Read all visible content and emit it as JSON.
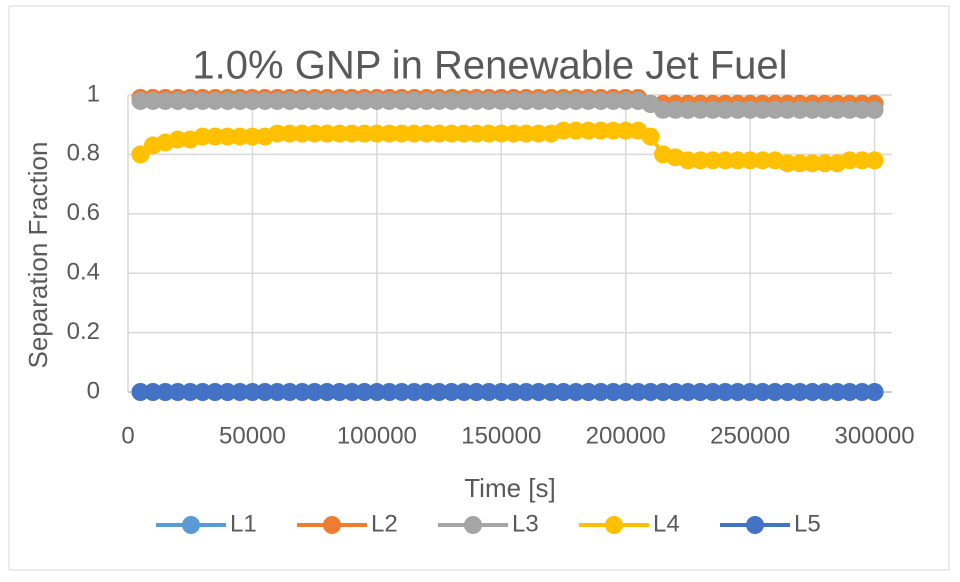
{
  "chart_data": {
    "type": "line",
    "title": "1.0% GNP in Renewable Jet Fuel",
    "x_label": "Time [s]",
    "y_label": "Separation Fraction",
    "x": [
      5000,
      10000,
      15000,
      20000,
      25000,
      30000,
      35000,
      40000,
      45000,
      50000,
      55000,
      60000,
      65000,
      70000,
      75000,
      80000,
      85000,
      90000,
      95000,
      100000,
      105000,
      110000,
      115000,
      120000,
      125000,
      130000,
      135000,
      140000,
      145000,
      150000,
      155000,
      160000,
      165000,
      170000,
      175000,
      180000,
      185000,
      190000,
      195000,
      200000,
      205000,
      210000,
      215000,
      220000,
      225000,
      230000,
      235000,
      240000,
      245000,
      250000,
      255000,
      260000,
      265000,
      270000,
      275000,
      280000,
      285000,
      290000,
      295000,
      300000
    ],
    "series": [
      {
        "name": "L1",
        "color": "#5b9bd5",
        "values": [
          0.99,
          0.99,
          0.99,
          0.99,
          0.99,
          0.99,
          0.99,
          0.99,
          0.99,
          0.99,
          0.99,
          0.99,
          0.99,
          0.99,
          0.99,
          0.99,
          0.99,
          0.99,
          0.99,
          0.99,
          0.99,
          0.99,
          0.99,
          0.99,
          0.99,
          0.99,
          0.99,
          0.99,
          0.99,
          0.99,
          0.99,
          0.99,
          0.99,
          0.99,
          0.99,
          0.99,
          0.99,
          0.99,
          0.99,
          0.99,
          0.99,
          0.97,
          0.97,
          0.97,
          0.97,
          0.97,
          0.97,
          0.97,
          0.97,
          0.97,
          0.97,
          0.97,
          0.97,
          0.97,
          0.97,
          0.97,
          0.97,
          0.97,
          0.97,
          0.97
        ]
      },
      {
        "name": "L2",
        "color": "#ed7d31",
        "values": [
          0.99,
          0.99,
          0.99,
          0.99,
          0.99,
          0.99,
          0.99,
          0.99,
          0.99,
          0.99,
          0.99,
          0.99,
          0.99,
          0.99,
          0.99,
          0.99,
          0.99,
          0.99,
          0.99,
          0.99,
          0.99,
          0.99,
          0.99,
          0.99,
          0.99,
          0.99,
          0.99,
          0.99,
          0.99,
          0.99,
          0.99,
          0.99,
          0.99,
          0.99,
          0.99,
          0.99,
          0.99,
          0.99,
          0.99,
          0.99,
          0.99,
          0.97,
          0.97,
          0.97,
          0.97,
          0.97,
          0.97,
          0.97,
          0.97,
          0.97,
          0.97,
          0.97,
          0.97,
          0.97,
          0.97,
          0.97,
          0.97,
          0.97,
          0.97,
          0.97
        ]
      },
      {
        "name": "L3",
        "color": "#a5a5a5",
        "values": [
          0.98,
          0.98,
          0.98,
          0.98,
          0.98,
          0.98,
          0.98,
          0.98,
          0.98,
          0.98,
          0.98,
          0.98,
          0.98,
          0.98,
          0.98,
          0.98,
          0.98,
          0.98,
          0.98,
          0.98,
          0.98,
          0.98,
          0.98,
          0.98,
          0.98,
          0.98,
          0.98,
          0.98,
          0.98,
          0.98,
          0.98,
          0.98,
          0.98,
          0.98,
          0.98,
          0.98,
          0.98,
          0.98,
          0.98,
          0.98,
          0.98,
          0.97,
          0.95,
          0.95,
          0.95,
          0.95,
          0.95,
          0.95,
          0.95,
          0.95,
          0.95,
          0.95,
          0.95,
          0.95,
          0.95,
          0.95,
          0.95,
          0.95,
          0.95,
          0.95
        ]
      },
      {
        "name": "L4",
        "color": "#ffc000",
        "values": [
          0.8,
          0.83,
          0.84,
          0.85,
          0.85,
          0.86,
          0.86,
          0.86,
          0.86,
          0.86,
          0.86,
          0.87,
          0.87,
          0.87,
          0.87,
          0.87,
          0.87,
          0.87,
          0.87,
          0.87,
          0.87,
          0.87,
          0.87,
          0.87,
          0.87,
          0.87,
          0.87,
          0.87,
          0.87,
          0.87,
          0.87,
          0.87,
          0.87,
          0.87,
          0.88,
          0.88,
          0.88,
          0.88,
          0.88,
          0.88,
          0.88,
          0.86,
          0.8,
          0.79,
          0.78,
          0.78,
          0.78,
          0.78,
          0.78,
          0.78,
          0.78,
          0.78,
          0.77,
          0.77,
          0.77,
          0.77,
          0.77,
          0.78,
          0.78,
          0.78
        ]
      },
      {
        "name": "L5",
        "color": "#4472c4",
        "values": [
          0,
          0,
          0,
          0,
          0,
          0,
          0,
          0,
          0,
          0,
          0,
          0,
          0,
          0,
          0,
          0,
          0,
          0,
          0,
          0,
          0,
          0,
          0,
          0,
          0,
          0,
          0,
          0,
          0,
          0,
          0,
          0,
          0,
          0,
          0,
          0,
          0,
          0,
          0,
          0,
          0,
          0,
          0,
          0,
          0,
          0,
          0,
          0,
          0,
          0,
          0,
          0,
          0,
          0,
          0,
          0,
          0,
          0,
          0,
          0
        ]
      }
    ],
    "xlim": [
      0,
      307000
    ],
    "xticks": [
      0,
      50000,
      100000,
      150000,
      200000,
      250000,
      300000
    ],
    "ylim": [
      0,
      1
    ],
    "yticks": [
      0,
      0.2,
      0.4,
      0.6,
      0.8,
      1
    ],
    "grid": true,
    "legend": "bottom"
  }
}
